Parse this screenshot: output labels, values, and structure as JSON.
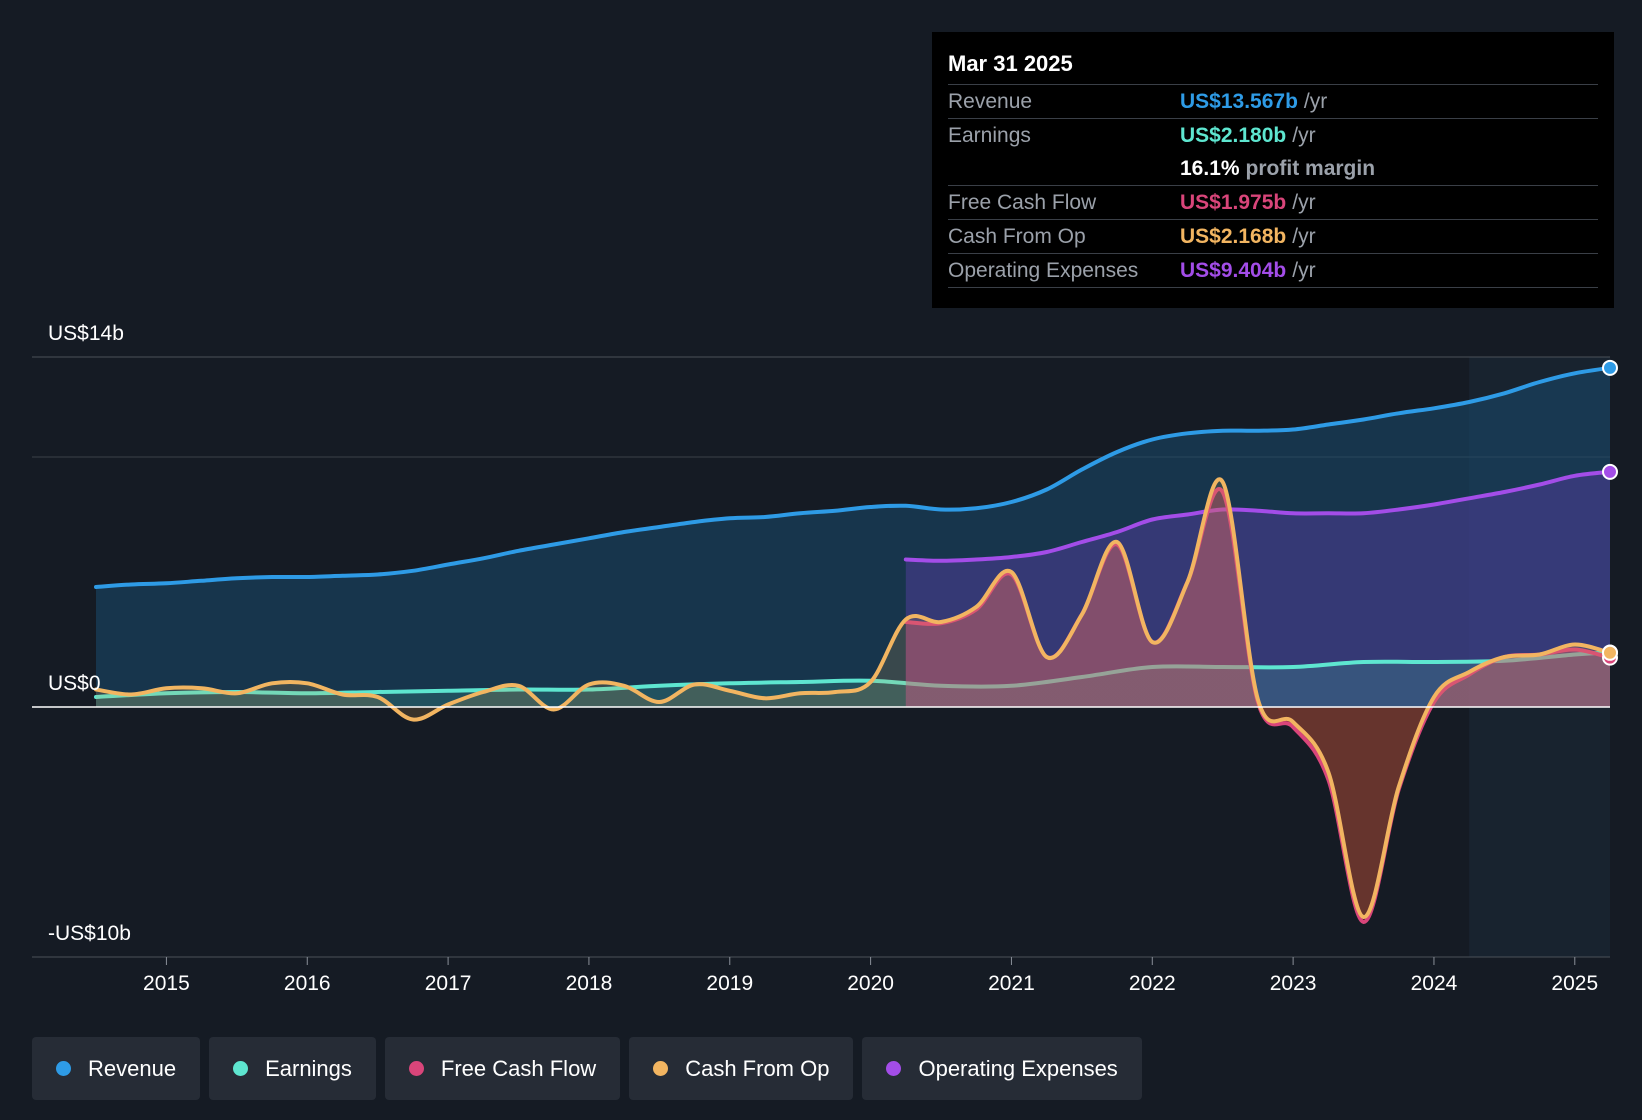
{
  "tooltip": {
    "date": "Mar 31 2025",
    "rows": [
      {
        "label": "Revenue",
        "value": "US$13.567b",
        "unit": "/yr",
        "color": "#2e9be6"
      },
      {
        "label": "Earnings",
        "value": "US$2.180b",
        "unit": "/yr",
        "color": "#5ee6d0"
      },
      {
        "label": "",
        "value": "16.1%",
        "unit": "profit margin",
        "color": "#ffffff"
      },
      {
        "label": "Free Cash Flow",
        "value": "US$1.975b",
        "unit": "/yr",
        "color": "#d9457a"
      },
      {
        "label": "Cash From Op",
        "value": "US$2.168b",
        "unit": "/yr",
        "color": "#f2b561"
      },
      {
        "label": "Operating Expenses",
        "value": "US$9.404b",
        "unit": "/yr",
        "color": "#a34de8"
      }
    ]
  },
  "legend": [
    {
      "label": "Revenue",
      "color": "#2e9be6"
    },
    {
      "label": "Earnings",
      "color": "#5ee6d0"
    },
    {
      "label": "Free Cash Flow",
      "color": "#d9457a"
    },
    {
      "label": "Cash From Op",
      "color": "#f2b561"
    },
    {
      "label": "Operating Expenses",
      "color": "#a34de8"
    }
  ],
  "chart_data": {
    "type": "line",
    "title": "",
    "xlabel": "",
    "ylabel": "",
    "y_top_label": "US$14b",
    "y_zero_label": "US$0",
    "y_bottom_label": "-US$10b",
    "ylim": [
      -10,
      14
    ],
    "xlim": [
      2014.5,
      2025.25
    ],
    "x_ticks": [
      2015,
      2016,
      2017,
      2018,
      2019,
      2020,
      2021,
      2022,
      2023,
      2024,
      2025
    ],
    "x_tick_labels": [
      "2015",
      "2016",
      "2017",
      "2018",
      "2019",
      "2020",
      "2021",
      "2022",
      "2023",
      "2024",
      "2025"
    ],
    "forecast_start": 2024.25,
    "series": [
      {
        "name": "Revenue",
        "color": "#2e9be6",
        "x": [
          2014.5,
          2014.75,
          2015,
          2015.25,
          2015.5,
          2015.75,
          2016,
          2016.25,
          2016.5,
          2016.75,
          2017,
          2017.25,
          2017.5,
          2017.75,
          2018,
          2018.25,
          2018.5,
          2018.75,
          2019,
          2019.25,
          2019.5,
          2019.75,
          2020,
          2020.25,
          2020.5,
          2020.75,
          2021,
          2021.25,
          2021.5,
          2021.75,
          2022,
          2022.25,
          2022.5,
          2022.75,
          2023,
          2023.25,
          2023.5,
          2023.75,
          2024,
          2024.25,
          2024.5,
          2024.75,
          2025,
          2025.25
        ],
        "values": [
          4.8,
          4.9,
          4.95,
          5.05,
          5.15,
          5.2,
          5.2,
          5.25,
          5.3,
          5.45,
          5.7,
          5.95,
          6.25,
          6.5,
          6.75,
          7.0,
          7.2,
          7.4,
          7.55,
          7.6,
          7.75,
          7.85,
          8.0,
          8.05,
          7.9,
          7.95,
          8.2,
          8.7,
          9.5,
          10.2,
          10.7,
          10.95,
          11.05,
          11.05,
          11.1,
          11.3,
          11.5,
          11.75,
          11.95,
          12.2,
          12.55,
          13.0,
          13.35,
          13.567
        ]
      },
      {
        "name": "Operating Expenses",
        "color": "#a34de8",
        "x": [
          2020.25,
          2020.5,
          2020.75,
          2021,
          2021.25,
          2021.5,
          2021.75,
          2022,
          2022.25,
          2022.5,
          2022.75,
          2023,
          2023.25,
          2023.5,
          2023.75,
          2024,
          2024.25,
          2024.5,
          2024.75,
          2025,
          2025.25
        ],
        "values": [
          5.9,
          5.85,
          5.9,
          6.0,
          6.2,
          6.6,
          7.0,
          7.5,
          7.7,
          7.9,
          7.85,
          7.75,
          7.75,
          7.75,
          7.9,
          8.1,
          8.35,
          8.6,
          8.9,
          9.25,
          9.404
        ]
      },
      {
        "name": "Earnings",
        "color": "#5ee6d0",
        "x": [
          2014.5,
          2015,
          2015.5,
          2016,
          2016.5,
          2017,
          2017.5,
          2018,
          2018.5,
          2019,
          2019.5,
          2020,
          2020.5,
          2021,
          2021.5,
          2022,
          2022.5,
          2023,
          2023.5,
          2024,
          2024.5,
          2025,
          2025.25
        ],
        "values": [
          0.4,
          0.55,
          0.6,
          0.55,
          0.6,
          0.65,
          0.7,
          0.7,
          0.85,
          0.95,
          1.0,
          1.05,
          0.85,
          0.85,
          1.2,
          1.6,
          1.6,
          1.6,
          1.8,
          1.8,
          1.85,
          2.1,
          2.18
        ]
      },
      {
        "name": "Free Cash Flow",
        "color": "#d9457a",
        "x": [
          2020.25,
          2020.5,
          2020.75,
          2021,
          2021.25,
          2021.5,
          2021.75,
          2022,
          2022.25,
          2022.5,
          2022.75,
          2023,
          2023.25,
          2023.5,
          2023.75,
          2024,
          2024.25,
          2024.5,
          2024.75,
          2025,
          2025.25
        ],
        "values": [
          3.4,
          3.35,
          3.9,
          5.3,
          2.0,
          3.7,
          6.5,
          2.6,
          5.0,
          8.6,
          0.2,
          -0.8,
          -2.9,
          -8.6,
          -3.3,
          0.2,
          1.3,
          2.0,
          2.1,
          2.3,
          1.975
        ]
      },
      {
        "name": "Cash From Op",
        "color": "#f2b561",
        "x": [
          2014.5,
          2014.75,
          2015,
          2015.25,
          2015.5,
          2015.75,
          2016,
          2016.25,
          2016.5,
          2016.75,
          2017,
          2017.25,
          2017.5,
          2017.75,
          2018,
          2018.25,
          2018.5,
          2018.75,
          2019,
          2019.25,
          2019.5,
          2019.75,
          2020,
          2020.25,
          2020.5,
          2020.75,
          2021,
          2021.25,
          2021.5,
          2021.75,
          2022,
          2022.25,
          2022.5,
          2022.75,
          2023,
          2023.25,
          2023.5,
          2023.75,
          2024,
          2024.25,
          2024.5,
          2024.75,
          2025,
          2025.25
        ],
        "values": [
          0.7,
          0.5,
          0.75,
          0.75,
          0.55,
          0.95,
          0.95,
          0.5,
          0.4,
          -0.5,
          0.1,
          0.6,
          0.85,
          -0.1,
          0.9,
          0.85,
          0.2,
          0.9,
          0.65,
          0.35,
          0.55,
          0.6,
          1.0,
          3.5,
          3.4,
          4.0,
          5.4,
          2.0,
          3.7,
          6.6,
          2.6,
          5.0,
          9.0,
          0.3,
          -0.6,
          -2.6,
          -8.4,
          -3.2,
          0.4,
          1.4,
          2.0,
          2.1,
          2.5,
          2.168
        ]
      }
    ]
  }
}
